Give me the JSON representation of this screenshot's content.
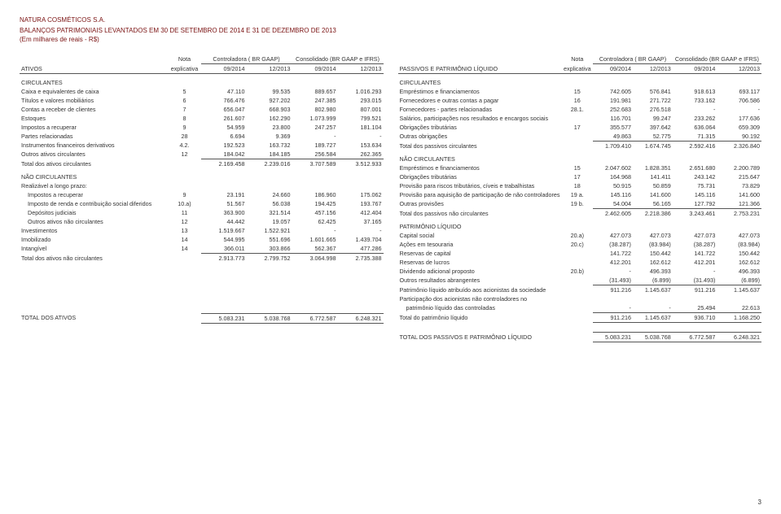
{
  "company": "NATURA COSMÉTICOS S.A.",
  "title": "BALANÇOS PATRIMONIAIS LEVANTADOS EM 30 DE SETEMBRO DE 2014 E 31 DE DEZEMBRO DE 2013",
  "subtitle": "(Em milhares de reais - R$)",
  "header": {
    "nota": "Nota",
    "controladora": "Controladora ( BR GAAP)",
    "consolidado": "Consolidado (BR GAAP e IFRS)",
    "ativos": "ATIVOS",
    "passivos": "PASSIVOS E PATRIMÔNIO LÍQUIDO",
    "explicativa": "explicativa",
    "p1": "09/2014",
    "p2": "12/2013",
    "p3": "09/2014",
    "p4": "12/2013"
  },
  "left": {
    "sec1": "CIRCULANTES",
    "rows1": [
      {
        "l": "Caixa e equivalentes de caixa",
        "n": "5",
        "a": "47.110",
        "b": "99.535",
        "c": "889.657",
        "d": "1.016.293"
      },
      {
        "l": "Títulos e valores mobiliários",
        "n": "6",
        "a": "766.476",
        "b": "927.202",
        "c": "247.385",
        "d": "293.015"
      },
      {
        "l": "Contas a receber de clientes",
        "n": "7",
        "a": "656.047",
        "b": "668.903",
        "c": "802.980",
        "d": "807.001"
      },
      {
        "l": "Estoques",
        "n": "8",
        "a": "261.607",
        "b": "162.290",
        "c": "1.073.999",
        "d": "799.521"
      },
      {
        "l": "Impostos a recuperar",
        "n": "9",
        "a": "54.959",
        "b": "23.800",
        "c": "247.257",
        "d": "181.104"
      },
      {
        "l": "Partes relacionadas",
        "n": "28",
        "a": "6.694",
        "b": "9.369",
        "c": "-",
        "d": "-"
      },
      {
        "l": "Instrumentos financeiros derivativos",
        "n": "4.2.",
        "a": "192.523",
        "b": "163.732",
        "c": "189.727",
        "d": "153.634"
      },
      {
        "l": "Outros ativos circulantes",
        "n": "12",
        "a": "184.042",
        "b": "184.185",
        "c": "256.584",
        "d": "262.365"
      }
    ],
    "tot1": {
      "l": "Total dos ativos circulantes",
      "a": "2.169.458",
      "b": "2.239.016",
      "c": "3.707.589",
      "d": "3.512.933"
    },
    "sec2": "NÃO CIRCULANTES",
    "sec2sub": "Realizável a longo prazo:",
    "rows2": [
      {
        "l": "Impostos a recuperar",
        "n": "9",
        "a": "23.191",
        "b": "24.660",
        "c": "186.960",
        "d": "175.062"
      },
      {
        "l": "Imposto de renda e contribuição social diferidos",
        "n": "10.a)",
        "a": "51.567",
        "b": "56.038",
        "c": "194.425",
        "d": "193.767"
      },
      {
        "l": "Depósitos judiciais",
        "n": "11",
        "a": "363.900",
        "b": "321.514",
        "c": "457.156",
        "d": "412.404"
      },
      {
        "l": "Outros ativos não circulantes",
        "n": "12",
        "a": "44.442",
        "b": "19.057",
        "c": "62.425",
        "d": "37.165"
      }
    ],
    "rows3": [
      {
        "l": "Investimentos",
        "n": "13",
        "a": "1.519.667",
        "b": "1.522.921",
        "c": "-",
        "d": "-"
      },
      {
        "l": "Imobilizado",
        "n": "14",
        "a": "544.995",
        "b": "551.696",
        "c": "1.601.665",
        "d": "1.439.704"
      },
      {
        "l": "Intangível",
        "n": "14",
        "a": "366.011",
        "b": "303.866",
        "c": "562.367",
        "d": "477.286"
      }
    ],
    "tot2": {
      "l": "Total dos ativos não circulantes",
      "a": "2.913.773",
      "b": "2.799.752",
      "c": "3.064.998",
      "d": "2.735.388"
    },
    "grand": {
      "l": "TOTAL DOS ATIVOS",
      "a": "5.083.231",
      "b": "5.038.768",
      "c": "6.772.587",
      "d": "6.248.321"
    }
  },
  "right": {
    "sec1": "CIRCULANTES",
    "rows1": [
      {
        "l": "Empréstimos e financiamentos",
        "n": "15",
        "a": "742.605",
        "b": "576.841",
        "c": "918.613",
        "d": "693.117"
      },
      {
        "l": "Fornecedores e outras contas a pagar",
        "n": "16",
        "a": "191.981",
        "b": "271.722",
        "c": "733.162",
        "d": "706.586"
      },
      {
        "l": "Fornecedores - partes relacionadas",
        "n": "28.1.",
        "a": "252.683",
        "b": "276.518",
        "c": "-",
        "d": "-"
      },
      {
        "l": "Salários, participações nos resultados e encargos sociais",
        "n": "",
        "a": "116.701",
        "b": "99.247",
        "c": "233.262",
        "d": "177.636"
      },
      {
        "l": "Obrigações tributárias",
        "n": "17",
        "a": "355.577",
        "b": "397.642",
        "c": "636.064",
        "d": "659.309"
      },
      {
        "l": "Outras obrigações",
        "n": "",
        "a": "49.863",
        "b": "52.775",
        "c": "71.315",
        "d": "90.192"
      }
    ],
    "tot1": {
      "l": "Total dos passivos circulantes",
      "a": "1.709.410",
      "b": "1.674.745",
      "c": "2.592.416",
      "d": "2.326.840"
    },
    "sec2": "NÃO CIRCULANTES",
    "rows2": [
      {
        "l": "Empréstimos e financiamentos",
        "n": "15",
        "a": "2.047.602",
        "b": "1.828.351",
        "c": "2.651.680",
        "d": "2.200.789"
      },
      {
        "l": "Obrigações tributárias",
        "n": "17",
        "a": "164.968",
        "b": "141.411",
        "c": "243.142",
        "d": "215.647"
      },
      {
        "l": "Provisão para riscos tributários, cíveis e trabalhistas",
        "n": "18",
        "a": "50.915",
        "b": "50.859",
        "c": "75.731",
        "d": "73.829"
      },
      {
        "l": "Provisão para aquisição de participação de não controladores",
        "n": "19 a.",
        "a": "145.116",
        "b": "141.600",
        "c": "145.116",
        "d": "141.600"
      },
      {
        "l": "Outras provisões",
        "n": "19 b.",
        "a": "54.004",
        "b": "56.165",
        "c": "127.792",
        "d": "121.366"
      }
    ],
    "tot2": {
      "l": "Total dos passivos não circulantes",
      "a": "2.462.605",
      "b": "2.218.386",
      "c": "3.243.461",
      "d": "2.753.231"
    },
    "sec3": "PATRIMÔNIO LÍQUIDO",
    "rows3": [
      {
        "l": "Capital social",
        "n": "20.a)",
        "a": "427.073",
        "b": "427.073",
        "c": "427.073",
        "d": "427.073"
      },
      {
        "l": "Ações em tesouraria",
        "n": "20.c)",
        "a": "(38.287)",
        "b": "(83.984)",
        "c": "(38.287)",
        "d": "(83.984)"
      },
      {
        "l": "Reservas de capital",
        "n": "",
        "a": "141.722",
        "b": "150.442",
        "c": "141.722",
        "d": "150.442"
      },
      {
        "l": "Reservas de lucros",
        "n": "",
        "a": "412.201",
        "b": "162.612",
        "c": "412.201",
        "d": "162.612"
      },
      {
        "l": "Dividendo adicional proposto",
        "n": "20.b)",
        "a": "-",
        "b": "496.393",
        "c": "-",
        "d": "496.393"
      },
      {
        "l": "Outros resultados abrangentes",
        "n": "",
        "a": "(31.493)",
        "b": "(6.899)",
        "c": "(31.493)",
        "d": "(6.899)"
      }
    ],
    "pl1": {
      "l": "Patrimônio líquido atribuído aos acionistas da sociedade",
      "a": "911.216",
      "b": "1.145.637",
      "c": "911.216",
      "d": "1.145.637"
    },
    "part_label": "Participação dos acionistas não controladores no",
    "part_row": {
      "l": "patrimônio líquido das controladas",
      "a": "-",
      "b": "-",
      "c": "25.494",
      "d": "22.613"
    },
    "tot3": {
      "l": "Total do patrimônio líquido",
      "a": "911.216",
      "b": "1.145.637",
      "c": "936.710",
      "d": "1.168.250"
    },
    "grand": {
      "l": "TOTAL DOS PASSIVOS E PATRIMÔNIO LÍQUIDO",
      "a": "5.083.231",
      "b": "5.038.768",
      "c": "6.772.587",
      "d": "6.248.321"
    }
  },
  "pagenum": "3"
}
